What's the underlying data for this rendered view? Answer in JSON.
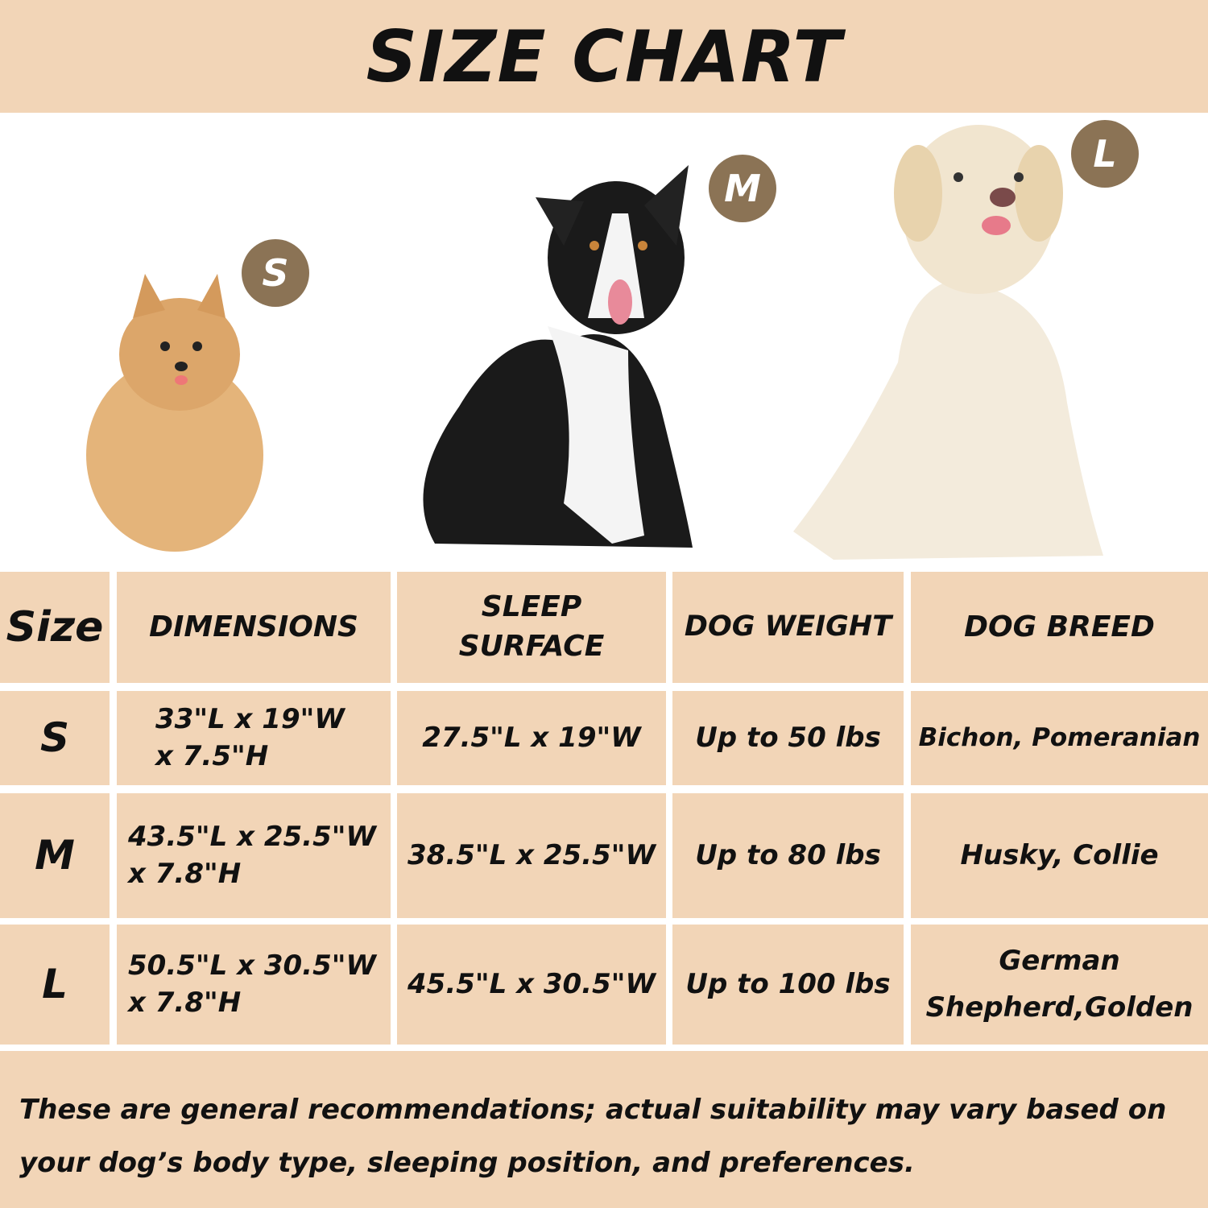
{
  "title": "SIZE CHART",
  "badges": [
    "S",
    "M",
    "L"
  ],
  "colors": {
    "background": "#f2d5b7",
    "badge": "#8b7355"
  },
  "table": {
    "headers": [
      "Size",
      "DIMENSIONS",
      "SLEEP SURFACE",
      "DOG WEIGHT",
      "DOG BREED"
    ],
    "rows": [
      {
        "size": "S",
        "dimensions": "33\"L x 19\"W x 7.5\"H",
        "sleep_surface": "27.5\"L x 19\"W",
        "weight": "Up to 50 lbs",
        "breed": "Bichon, Pomeranian"
      },
      {
        "size": "M",
        "dimensions": "43.5\"L x 25.5\"W x 7.8\"H",
        "sleep_surface": "38.5\"L x 25.5\"W",
        "weight": "Up to 80 lbs",
        "breed": "Husky, Collie"
      },
      {
        "size": "L",
        "dimensions": "50.5\"L x 30.5\"W x 7.8\"H",
        "sleep_surface": "45.5\"L x 30.5\"W",
        "weight": "Up to 100 lbs",
        "breed": "German Shepherd,Golden"
      }
    ]
  },
  "footnote": "These are general recommendations; actual suitability may vary based on your dog’s body type, sleeping position, and preferences."
}
